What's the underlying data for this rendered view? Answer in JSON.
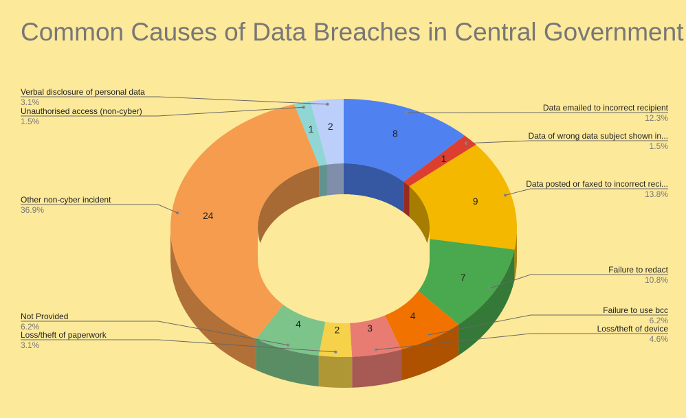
{
  "chart_data": {
    "type": "pie",
    "variant": "3d-donut",
    "title": "Common Causes of Data Breaches in Central Government",
    "background": "#fde99a",
    "slices": [
      {
        "label": "Data emailed to incorrect recipient",
        "value": 8,
        "percent": "12.3%",
        "color": "#4f82f0"
      },
      {
        "label": "Data of wrong data subject shown in...",
        "value": 1,
        "percent": "1.5%",
        "color": "#dc3f2f"
      },
      {
        "label": "Data posted or faxed to incorrect reci...",
        "value": 9,
        "percent": "13.8%",
        "color": "#f4b800"
      },
      {
        "label": "Failure to redact",
        "value": 7,
        "percent": "10.8%",
        "color": "#4aa84e"
      },
      {
        "label": "Failure to use bcc",
        "value": 4,
        "percent": "6.2%",
        "color": "#f27200"
      },
      {
        "label": "Loss/theft of device",
        "value": 3,
        "percent": "4.6%",
        "color": "#e87c73"
      },
      {
        "label": "Loss/theft of paperwork",
        "value": 2,
        "percent": "3.1%",
        "color": "#f5d24a"
      },
      {
        "label": "Not Provided",
        "value": 4,
        "percent": "6.2%",
        "color": "#7dc48a"
      },
      {
        "label": "Other non-cyber incident",
        "value": 24,
        "percent": "36.9%",
        "color": "#f59c4e"
      },
      {
        "label": "Unauthorised access (non-cyber)",
        "value": 1,
        "percent": "1.5%",
        "color": "#8fd6d4"
      },
      {
        "label": "Verbal disclosure of personal data",
        "value": 2,
        "percent": "3.1%",
        "color": "#bccffb"
      }
    ],
    "legend": "labels with leader lines"
  }
}
